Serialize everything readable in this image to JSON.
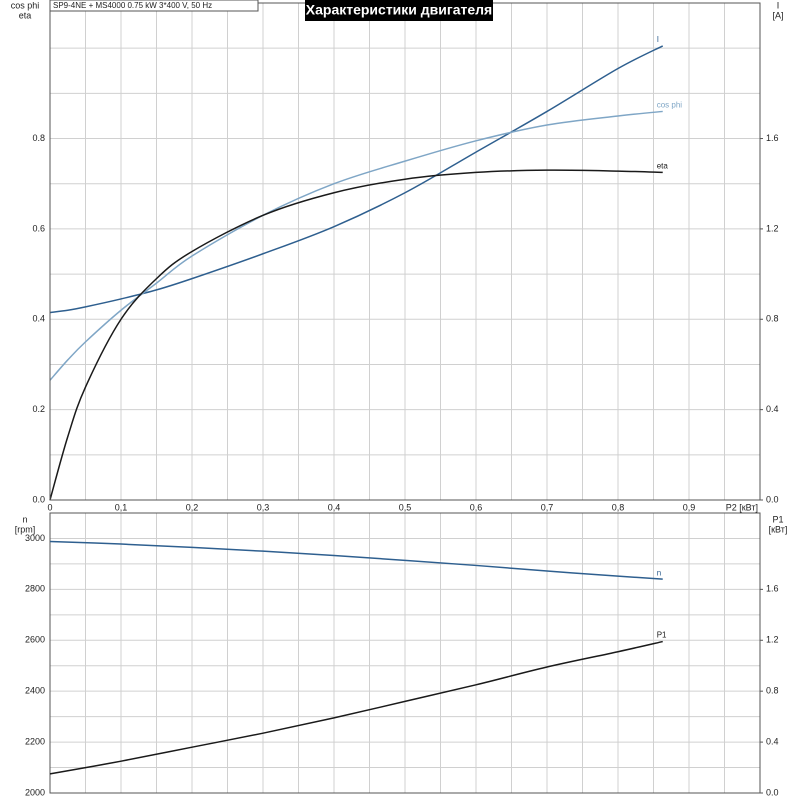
{
  "header": "SP9-4NE + MS4000   0.75 kW   3*400 V, 50 Hz",
  "chart_data": [
    {
      "type": "line",
      "title": "Характеристики двигателя",
      "xlabel": "P2 [кВт]",
      "ylabel": [
        "cos phi",
        "eta"
      ],
      "y2label": [
        "I",
        "[A]"
      ],
      "x": [
        0,
        0.025,
        0.05,
        0.1,
        0.15,
        0.2,
        0.3,
        0.4,
        0.5,
        0.6,
        0.7,
        0.8,
        0.863
      ],
      "xlim": [
        0,
        1.0
      ],
      "xticks": [
        0,
        {
          "value": 0.1,
          "label": "0,1"
        },
        {
          "value": 0.2,
          "label": "0,2"
        },
        {
          "value": 0.3,
          "label": "0,3"
        },
        {
          "value": 0.4,
          "label": "0,4"
        },
        {
          "value": 0.5,
          "label": "0,5"
        },
        {
          "value": 0.6,
          "label": "0,6"
        },
        {
          "value": 0.7,
          "label": "0,7"
        },
        {
          "value": 0.8,
          "label": "0,8"
        },
        {
          "value": 0.9,
          "label": "0,9"
        }
      ],
      "x_minor_ticks": [
        0.05,
        0.15,
        0.25,
        0.35,
        0.45,
        0.55,
        0.65,
        0.75,
        0.85,
        0.95,
        1.0
      ],
      "ylim": [
        0,
        1.1
      ],
      "yticks": [
        {
          "value": 0,
          "label": "0.0"
        },
        0.2,
        0.4,
        0.6,
        0.8
      ],
      "y_minor_ticks": [
        0.1,
        0.3,
        0.5,
        0.7,
        0.9,
        1.0
      ],
      "y2lim": [
        0,
        2.2
      ],
      "y2ticks": [
        {
          "value": 0,
          "label": "0.0"
        },
        0.4,
        0.8,
        1.2,
        1.6
      ],
      "series": [
        {
          "name": "I",
          "color": "#2e5f8f",
          "axis": "y2",
          "values": [
            0.83,
            0.84,
            0.855,
            0.89,
            0.93,
            0.98,
            1.09,
            1.21,
            1.36,
            1.54,
            1.72,
            1.91,
            2.01
          ]
        },
        {
          "name": "cos phi",
          "color": "#7fa6c6",
          "axis": "y",
          "values": [
            0.265,
            0.31,
            0.35,
            0.42,
            0.48,
            0.54,
            0.63,
            0.7,
            0.75,
            0.795,
            0.83,
            0.85,
            0.86
          ]
        },
        {
          "name": "eta",
          "color": "#1a1a1a",
          "axis": "y",
          "values": [
            0,
            0.14,
            0.25,
            0.4,
            0.49,
            0.55,
            0.63,
            0.68,
            0.71,
            0.725,
            0.73,
            0.728,
            0.725
          ]
        }
      ]
    },
    {
      "type": "line",
      "ylabel": [
        "n",
        "[rpm]"
      ],
      "y2label": [
        "P1",
        "[кВт]"
      ],
      "x": [
        0,
        0.1,
        0.2,
        0.3,
        0.4,
        0.5,
        0.6,
        0.7,
        0.8,
        0.863
      ],
      "xlim": [
        0,
        1.0
      ],
      "x_grid": [
        0.05,
        0.1,
        0.15,
        0.2,
        0.25,
        0.3,
        0.35,
        0.4,
        0.45,
        0.5,
        0.55,
        0.6,
        0.65,
        0.7,
        0.75,
        0.8,
        0.85,
        0.9,
        0.95,
        1.0
      ],
      "ylim": [
        2000,
        3100
      ],
      "yticks": [
        2000,
        2200,
        2400,
        2600,
        2800,
        3000
      ],
      "y_minor_ticks": [
        2100,
        2300,
        2500,
        2700,
        2900
      ],
      "y2lim": [
        0,
        2.2
      ],
      "y2ticks": [
        {
          "value": 0,
          "label": "0.0"
        },
        0.4,
        0.8,
        1.2,
        1.6
      ],
      "series": [
        {
          "name": "n",
          "color": "#2e5f8f",
          "axis": "y",
          "values": [
            2988,
            2978,
            2965,
            2950,
            2933,
            2914,
            2894,
            2872,
            2852,
            2840
          ]
        },
        {
          "name": "P1",
          "color": "#1a1a1a",
          "axis": "y2",
          "values": [
            0.15,
            0.25,
            0.36,
            0.47,
            0.59,
            0.72,
            0.85,
            0.99,
            1.11,
            1.19
          ]
        }
      ]
    }
  ]
}
